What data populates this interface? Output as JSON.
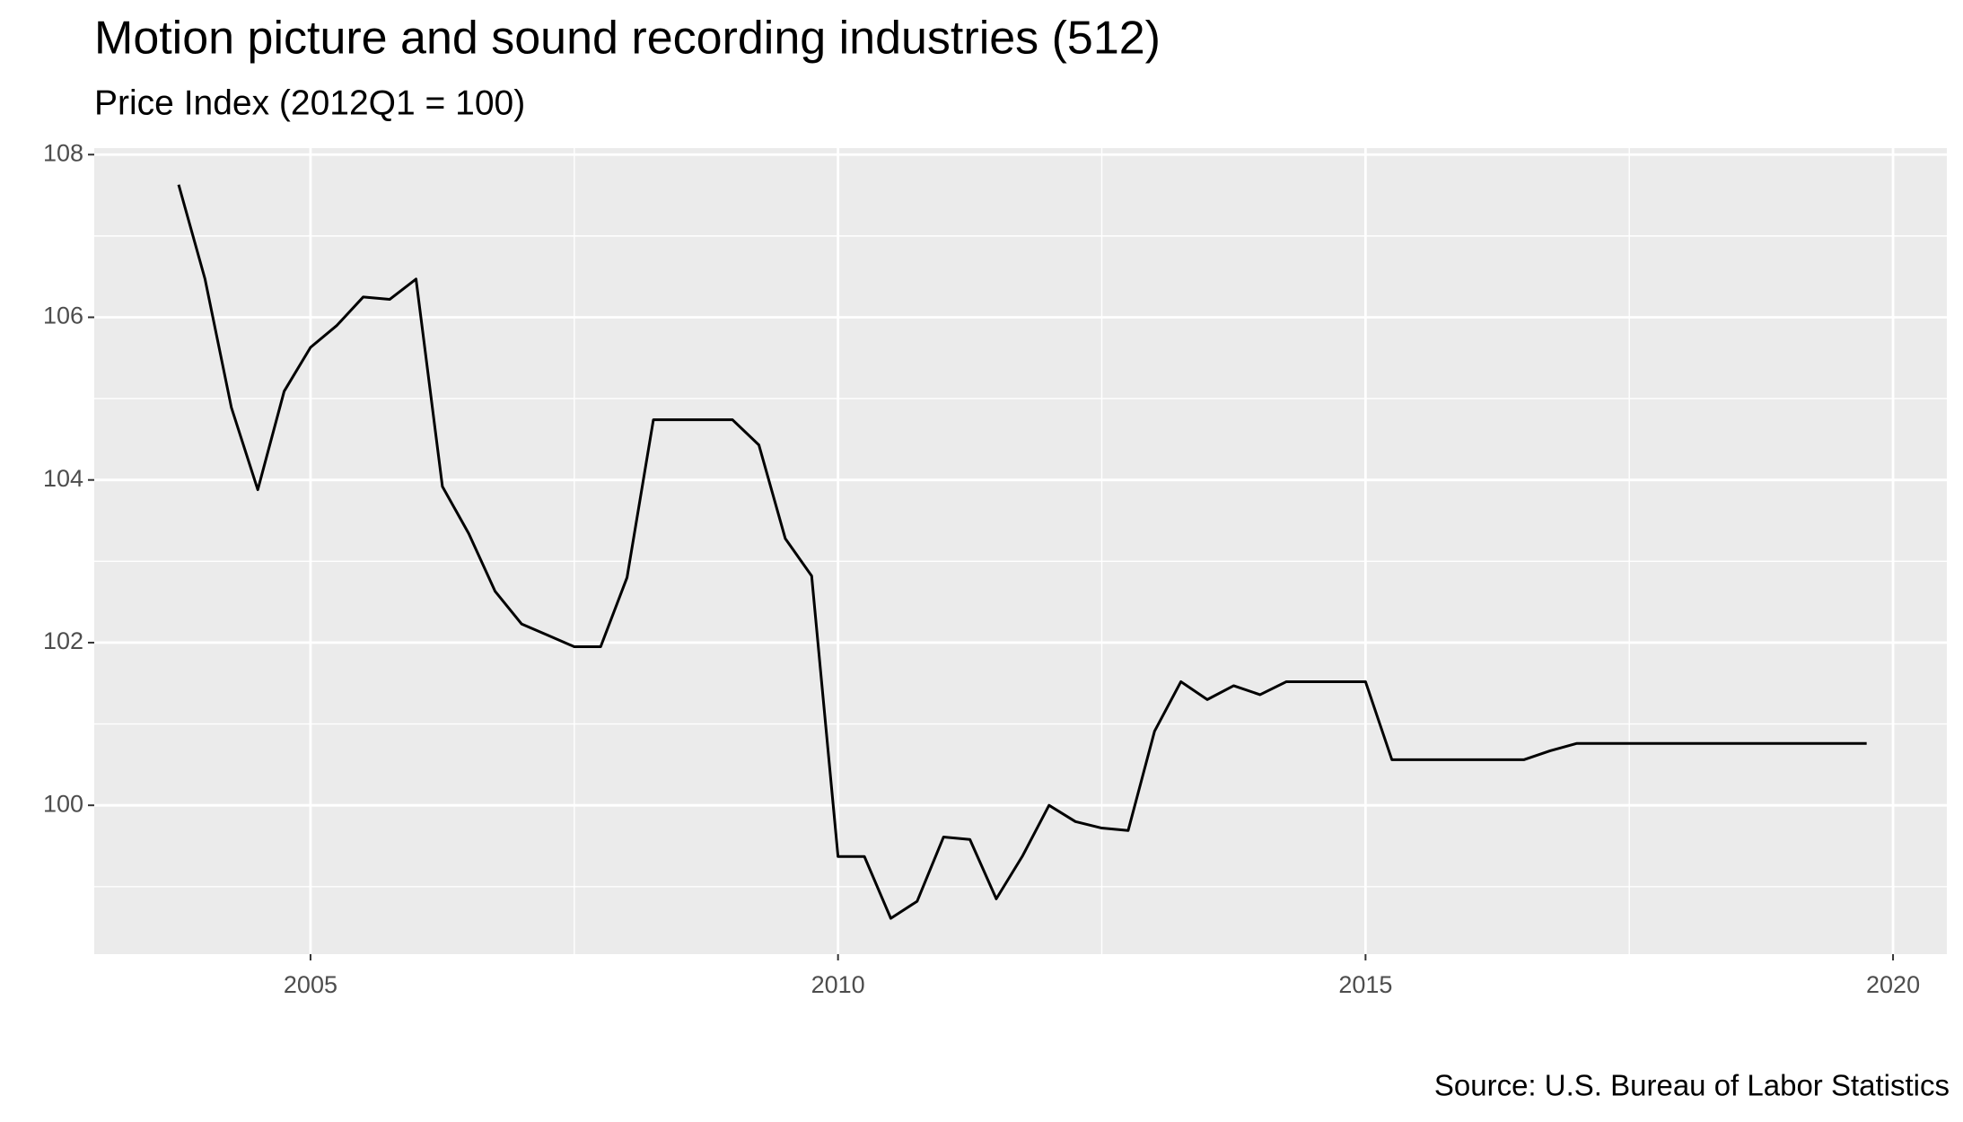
{
  "chart_data": {
    "type": "line",
    "title": "Motion picture and sound recording industries (512)",
    "subtitle": "Price Index (2012Q1 = 100)",
    "caption": "Source: U.S. Bureau of Labor Statistics",
    "x": [
      2003.75,
      2004.0,
      2004.25,
      2004.5,
      2004.75,
      2005.0,
      2005.25,
      2005.5,
      2005.75,
      2006.0,
      2006.25,
      2006.5,
      2006.75,
      2007.0,
      2007.25,
      2007.5,
      2007.75,
      2008.0,
      2008.25,
      2008.5,
      2008.75,
      2009.0,
      2009.25,
      2009.5,
      2009.75,
      2010.0,
      2010.25,
      2010.5,
      2010.75,
      2011.0,
      2011.25,
      2011.5,
      2011.75,
      2012.0,
      2012.25,
      2012.5,
      2012.75,
      2013.0,
      2013.25,
      2013.5,
      2013.75,
      2014.0,
      2014.25,
      2014.5,
      2014.75,
      2015.0,
      2015.25,
      2015.5,
      2015.75,
      2016.0,
      2016.25,
      2016.5,
      2016.75,
      2017.0,
      2017.25,
      2017.5,
      2017.75,
      2018.0,
      2018.25,
      2018.5,
      2018.75,
      2019.0,
      2019.25,
      2019.5,
      2019.75
    ],
    "series": [
      {
        "name": "Price Index",
        "color": "#000000",
        "values": [
          107.63,
          106.47,
          104.89,
          103.88,
          105.09,
          105.63,
          105.9,
          106.25,
          106.22,
          106.47,
          103.92,
          103.34,
          102.63,
          102.23,
          102.09,
          101.95,
          101.95,
          102.8,
          104.74,
          104.74,
          104.74,
          104.74,
          104.43,
          103.28,
          102.82,
          99.37,
          99.37,
          98.61,
          98.82,
          99.61,
          99.58,
          98.85,
          99.38,
          100.0,
          99.8,
          99.72,
          99.69,
          100.91,
          101.52,
          101.3,
          101.47,
          101.36,
          101.52,
          101.52,
          101.52,
          101.52,
          100.56,
          100.56,
          100.56,
          100.56,
          100.56,
          100.56,
          100.67,
          100.76,
          100.76,
          100.76,
          100.76,
          100.76,
          100.76,
          100.76,
          100.76,
          100.76,
          100.76,
          100.76,
          100.76
        ]
      }
    ],
    "xlim": [
      2002.95,
      2020.51
    ],
    "ylim": [
      98.17,
      108.08
    ],
    "xticks": [
      2005,
      2010,
      2015,
      2020
    ],
    "yticks": [
      100,
      102,
      104,
      106,
      108
    ],
    "grid": true
  }
}
